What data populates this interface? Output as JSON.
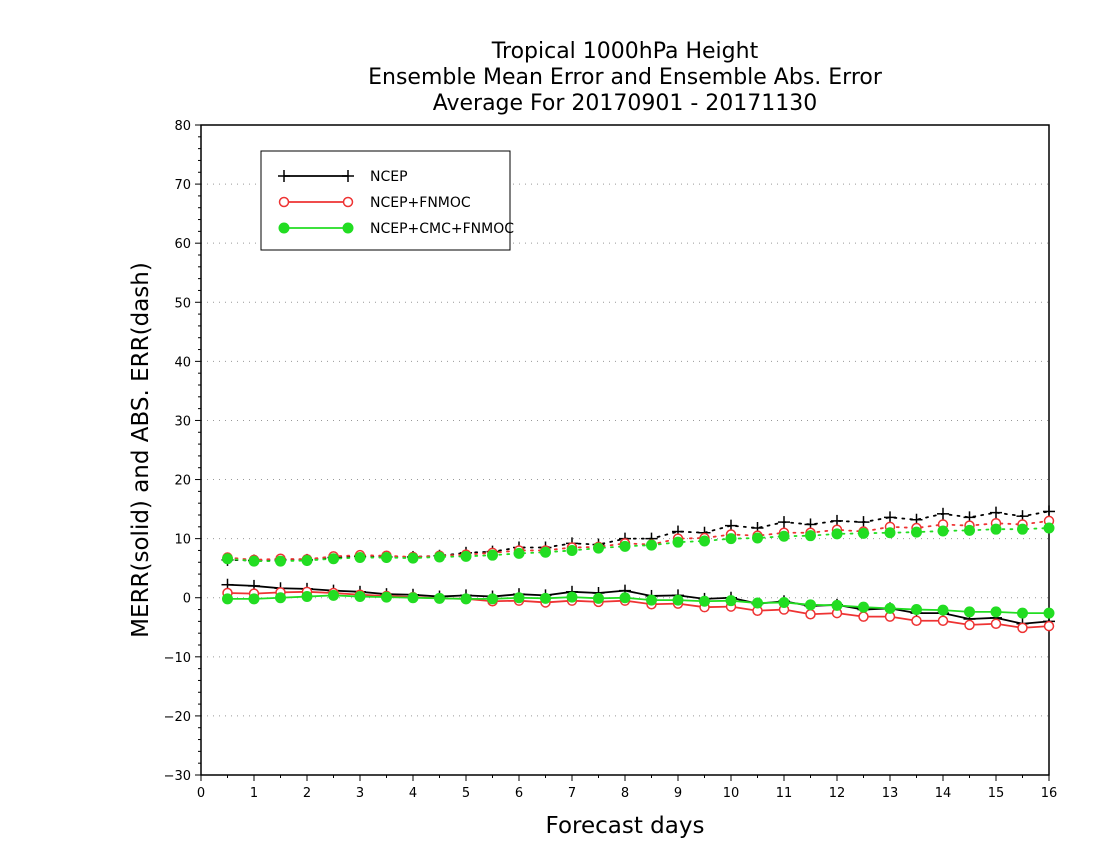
{
  "chart_data": {
    "type": "line",
    "title": [
      "Tropical 1000hPa Height",
      "Ensemble Mean Error and Ensemble Abs. Error",
      "Average For 20170901 - 20171130"
    ],
    "xlabel": "Forecast days",
    "ylabel": "MERR(solid) and ABS. ERR(dash)",
    "xlim": [
      0,
      16
    ],
    "ylim": [
      -30,
      80
    ],
    "xticks": [
      "0",
      "1",
      "2",
      "3",
      "4",
      "5",
      "6",
      "7",
      "8",
      "9",
      "10",
      "11",
      "12",
      "13",
      "14",
      "15",
      "16"
    ],
    "yticks": [
      "−30",
      "−20",
      "−10",
      "0",
      "10",
      "20",
      "30",
      "40",
      "50",
      "60",
      "70",
      "80"
    ],
    "grid": "horizontal dotted",
    "legend_position": "top-left",
    "x": [
      0.5,
      1,
      1.5,
      2,
      2.5,
      3,
      3.5,
      4,
      4.5,
      5,
      5.5,
      6,
      6.5,
      7,
      7.5,
      8,
      8.5,
      9,
      9.5,
      10,
      10.5,
      11,
      11.5,
      12,
      12.5,
      13,
      13.5,
      14,
      14.5,
      15,
      15.5,
      16
    ],
    "series": [
      {
        "name": "NCEP",
        "color": "#000000",
        "marker": "plus",
        "merr": [
          2.2,
          2.0,
          1.6,
          1.5,
          1.2,
          1.0,
          0.6,
          0.5,
          0.2,
          0.4,
          0.2,
          0.6,
          0.4,
          1.0,
          0.8,
          1.2,
          0.3,
          0.4,
          -0.2,
          0.0,
          -1.0,
          -0.6,
          -1.4,
          -1.2,
          -2.0,
          -1.8,
          -2.6,
          -2.6,
          -3.6,
          -3.4,
          -4.4,
          -4.0
        ],
        "abserr": [
          6.4,
          6.3,
          6.4,
          6.4,
          6.8,
          7.0,
          6.9,
          6.9,
          7.1,
          7.6,
          7.8,
          8.5,
          8.5,
          9.2,
          9.0,
          10.0,
          10.0,
          11.2,
          11.0,
          12.2,
          11.8,
          12.8,
          12.4,
          13.0,
          12.8,
          13.6,
          13.2,
          14.2,
          13.6,
          14.4,
          13.8,
          14.6
        ]
      },
      {
        "name": "NCEP+FNMOC",
        "color": "#ee3333",
        "marker": "open-circle",
        "merr": [
          0.8,
          0.7,
          0.9,
          1.0,
          0.8,
          0.5,
          0.3,
          0.1,
          -0.1,
          -0.2,
          -0.6,
          -0.5,
          -0.8,
          -0.5,
          -0.7,
          -0.5,
          -1.1,
          -1.0,
          -1.6,
          -1.5,
          -2.2,
          -2.0,
          -2.8,
          -2.6,
          -3.2,
          -3.2,
          -3.9,
          -3.9,
          -4.6,
          -4.4,
          -5.1,
          -4.8
        ],
        "abserr": [
          6.8,
          6.4,
          6.6,
          6.5,
          7.0,
          7.2,
          7.1,
          6.9,
          7.1,
          7.3,
          7.6,
          8.0,
          8.0,
          8.5,
          8.6,
          9.2,
          9.0,
          10.0,
          10.1,
          10.7,
          10.5,
          11.0,
          11.0,
          11.5,
          11.2,
          12.0,
          11.8,
          12.4,
          12.2,
          12.6,
          12.4,
          13.0
        ]
      },
      {
        "name": "NCEP+CMC+FNMOC",
        "color": "#22dd22",
        "marker": "filled-circle",
        "merr": [
          -0.2,
          -0.2,
          0.0,
          0.2,
          0.4,
          0.2,
          0.1,
          0.0,
          -0.1,
          -0.2,
          -0.2,
          0.0,
          -0.1,
          0.1,
          -0.1,
          0.0,
          -0.4,
          -0.4,
          -0.6,
          -0.5,
          -0.9,
          -0.8,
          -1.2,
          -1.3,
          -1.6,
          -1.8,
          -2.0,
          -2.1,
          -2.4,
          -2.4,
          -2.6,
          -2.6
        ],
        "abserr": [
          6.6,
          6.2,
          6.2,
          6.3,
          6.6,
          6.8,
          6.8,
          6.7,
          6.9,
          7.0,
          7.2,
          7.5,
          7.7,
          8.0,
          8.4,
          8.7,
          8.9,
          9.4,
          9.6,
          10.0,
          10.1,
          10.4,
          10.5,
          10.8,
          10.9,
          11.0,
          11.1,
          11.3,
          11.4,
          11.6,
          11.6,
          11.8
        ]
      }
    ]
  }
}
